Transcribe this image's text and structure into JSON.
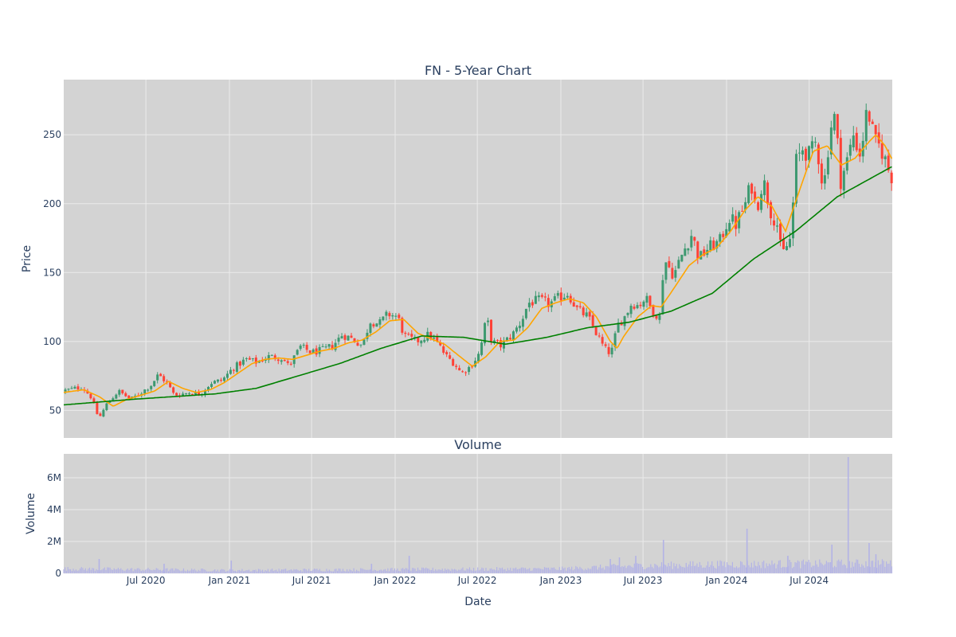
{
  "colors": {
    "plot_bg": "#d3d3d3",
    "grid": "#ebebeb",
    "increasing": "#3d9970",
    "decreasing": "#ff4136",
    "ma_short": "#ffa500",
    "ma_long": "#008000",
    "volume": "#b3b3e6",
    "text": "#2a3f5f"
  },
  "chart_data": [
    {
      "type": "candlestick",
      "title": "FN - 5-Year Chart",
      "xlabel": "",
      "ylabel": "Price",
      "xlim": [
        "2020-01-02",
        "2024-12-31"
      ],
      "ylim": [
        30,
        290
      ],
      "y_ticks": [
        50,
        100,
        150,
        200,
        250
      ],
      "grid": true,
      "price_path": [
        [
          "2020-01-02",
          64
        ],
        [
          "2020-02-15",
          67
        ],
        [
          "2020-03-05",
          60
        ],
        [
          "2020-03-23",
          44
        ],
        [
          "2020-04-10",
          55
        ],
        [
          "2020-05-05",
          64
        ],
        [
          "2020-06-01",
          58
        ],
        [
          "2020-06-20",
          62
        ],
        [
          "2020-07-15",
          68
        ],
        [
          "2020-08-01",
          76
        ],
        [
          "2020-08-20",
          70
        ],
        [
          "2020-09-05",
          61
        ],
        [
          "2020-10-10",
          63
        ],
        [
          "2020-11-01",
          62
        ],
        [
          "2020-11-25",
          70
        ],
        [
          "2020-12-20",
          72
        ],
        [
          "2021-01-10",
          80
        ],
        [
          "2021-02-10",
          87
        ],
        [
          "2021-03-05",
          85
        ],
        [
          "2021-04-01",
          89
        ],
        [
          "2021-05-01",
          88
        ],
        [
          "2021-05-15",
          82
        ],
        [
          "2021-06-10",
          96
        ],
        [
          "2021-07-05",
          92
        ],
        [
          "2021-08-01",
          94
        ],
        [
          "2021-08-20",
          97
        ],
        [
          "2021-09-10",
          105
        ],
        [
          "2021-10-01",
          102
        ],
        [
          "2021-10-25",
          97
        ],
        [
          "2021-11-10",
          115
        ],
        [
          "2021-12-01",
          113
        ],
        [
          "2021-12-20",
          120
        ],
        [
          "2022-01-10",
          118
        ],
        [
          "2022-01-25",
          104
        ],
        [
          "2022-02-20",
          100
        ],
        [
          "2022-03-20",
          105
        ],
        [
          "2022-04-10",
          98
        ],
        [
          "2022-04-25",
          90
        ],
        [
          "2022-05-15",
          84
        ],
        [
          "2022-05-30",
          77
        ],
        [
          "2022-06-20",
          82
        ],
        [
          "2022-07-10",
          92
        ],
        [
          "2022-07-25",
          118
        ],
        [
          "2022-08-05",
          100
        ],
        [
          "2022-08-25",
          97
        ],
        [
          "2022-09-20",
          105
        ],
        [
          "2022-10-10",
          115
        ],
        [
          "2022-10-25",
          128
        ],
        [
          "2022-11-20",
          130
        ],
        [
          "2022-12-10",
          127
        ],
        [
          "2023-01-01",
          132
        ],
        [
          "2023-01-20",
          135
        ],
        [
          "2023-02-10",
          123
        ],
        [
          "2023-03-05",
          118
        ],
        [
          "2023-03-25",
          105
        ],
        [
          "2023-04-10",
          95
        ],
        [
          "2023-04-25",
          91
        ],
        [
          "2023-05-10",
          112
        ],
        [
          "2023-05-25",
          118
        ],
        [
          "2023-06-10",
          128
        ],
        [
          "2023-06-25",
          126
        ],
        [
          "2023-07-10",
          132
        ],
        [
          "2023-07-25",
          122
        ],
        [
          "2023-08-10",
          118
        ],
        [
          "2023-08-20",
          160
        ],
        [
          "2023-09-10",
          148
        ],
        [
          "2023-10-01",
          165
        ],
        [
          "2023-10-20",
          178
        ],
        [
          "2023-11-05",
          160
        ],
        [
          "2023-11-25",
          168
        ],
        [
          "2023-12-20",
          172
        ],
        [
          "2024-01-10",
          190
        ],
        [
          "2024-01-25",
          185
        ],
        [
          "2024-02-15",
          200
        ],
        [
          "2024-02-28",
          215
        ],
        [
          "2024-03-10",
          195
        ],
        [
          "2024-03-25",
          218
        ],
        [
          "2024-04-10",
          195
        ],
        [
          "2024-04-25",
          185
        ],
        [
          "2024-05-05",
          162
        ],
        [
          "2024-05-25",
          175
        ],
        [
          "2024-06-05",
          230
        ],
        [
          "2024-06-20",
          240
        ],
        [
          "2024-07-05",
          235
        ],
        [
          "2024-07-20",
          245
        ],
        [
          "2024-08-05",
          210
        ],
        [
          "2024-08-20",
          255
        ],
        [
          "2024-09-01",
          265
        ],
        [
          "2024-09-10",
          215
        ],
        [
          "2024-09-25",
          230
        ],
        [
          "2024-10-10",
          250
        ],
        [
          "2024-10-25",
          235
        ],
        [
          "2024-11-10",
          270
        ],
        [
          "2024-11-25",
          245
        ],
        [
          "2024-12-10",
          240
        ],
        [
          "2024-12-31",
          220
        ]
      ],
      "ma_short_path": [
        [
          "2020-01-02",
          63
        ],
        [
          "2020-02-15",
          65
        ],
        [
          "2020-03-20",
          60
        ],
        [
          "2020-04-20",
          53
        ],
        [
          "2020-05-20",
          58
        ],
        [
          "2020-06-20",
          61
        ],
        [
          "2020-07-20",
          64
        ],
        [
          "2020-08-20",
          71
        ],
        [
          "2020-09-20",
          66
        ],
        [
          "2020-10-20",
          63
        ],
        [
          "2020-11-20",
          65
        ],
        [
          "2020-12-20",
          70
        ],
        [
          "2021-01-20",
          77
        ],
        [
          "2021-02-20",
          84
        ],
        [
          "2021-03-20",
          87
        ],
        [
          "2021-04-20",
          88
        ],
        [
          "2021-05-20",
          87
        ],
        [
          "2021-06-20",
          90
        ],
        [
          "2021-07-20",
          93
        ],
        [
          "2021-08-20",
          95
        ],
        [
          "2021-09-20",
          99
        ],
        [
          "2021-10-20",
          101
        ],
        [
          "2021-11-20",
          107
        ],
        [
          "2021-12-20",
          115
        ],
        [
          "2022-01-20",
          116
        ],
        [
          "2022-02-20",
          106
        ],
        [
          "2022-03-20",
          102
        ],
        [
          "2022-04-20",
          98
        ],
        [
          "2022-05-20",
          90
        ],
        [
          "2022-06-20",
          82
        ],
        [
          "2022-07-20",
          89
        ],
        [
          "2022-08-20",
          100
        ],
        [
          "2022-09-20",
          101
        ],
        [
          "2022-10-20",
          110
        ],
        [
          "2022-11-20",
          124
        ],
        [
          "2022-12-20",
          128
        ],
        [
          "2023-01-20",
          131
        ],
        [
          "2023-02-20",
          128
        ],
        [
          "2023-03-20",
          118
        ],
        [
          "2023-04-20",
          100
        ],
        [
          "2023-05-05",
          95
        ],
        [
          "2023-05-20",
          104
        ],
        [
          "2023-06-20",
          118
        ],
        [
          "2023-07-20",
          126
        ],
        [
          "2023-08-10",
          125
        ],
        [
          "2023-09-10",
          140
        ],
        [
          "2023-10-10",
          155
        ],
        [
          "2023-11-10",
          163
        ],
        [
          "2023-12-10",
          168
        ],
        [
          "2024-01-10",
          180
        ],
        [
          "2024-02-10",
          195
        ],
        [
          "2024-03-10",
          205
        ],
        [
          "2024-04-10",
          198
        ],
        [
          "2024-05-10",
          180
        ],
        [
          "2024-06-10",
          210
        ],
        [
          "2024-07-10",
          238
        ],
        [
          "2024-08-10",
          242
        ],
        [
          "2024-09-10",
          228
        ],
        [
          "2024-10-10",
          233
        ],
        [
          "2024-11-10",
          245
        ],
        [
          "2024-11-25",
          250
        ],
        [
          "2024-12-15",
          242
        ],
        [
          "2024-12-31",
          232
        ]
      ],
      "ma_long_path": [
        [
          "2020-01-02",
          54
        ],
        [
          "2020-06-01",
          58
        ],
        [
          "2020-12-01",
          62
        ],
        [
          "2021-03-01",
          66
        ],
        [
          "2021-06-01",
          75
        ],
        [
          "2021-09-01",
          84
        ],
        [
          "2021-12-01",
          95
        ],
        [
          "2022-03-01",
          104
        ],
        [
          "2022-06-01",
          103
        ],
        [
          "2022-09-01",
          98
        ],
        [
          "2022-12-01",
          103
        ],
        [
          "2023-03-01",
          110
        ],
        [
          "2023-06-01",
          114
        ],
        [
          "2023-09-01",
          122
        ],
        [
          "2023-12-01",
          135
        ],
        [
          "2024-03-01",
          160
        ],
        [
          "2024-06-01",
          180
        ],
        [
          "2024-09-01",
          205
        ],
        [
          "2024-12-31",
          227
        ]
      ]
    },
    {
      "type": "bar",
      "title": "Volume",
      "xlabel": "Date",
      "ylabel": "Volume",
      "xlim": [
        "2020-01-02",
        "2024-12-31"
      ],
      "ylim": [
        0,
        7500000
      ],
      "y_ticks": [
        0,
        2000000,
        4000000,
        6000000
      ],
      "y_tick_labels": [
        "0",
        "2M",
        "4M",
        "6M"
      ],
      "x_ticks": [
        "2020-07-01",
        "2021-01-01",
        "2021-07-01",
        "2022-01-01",
        "2022-07-01",
        "2023-01-01",
        "2023-07-01",
        "2024-01-01",
        "2024-07-01"
      ],
      "x_tick_labels": [
        "Jul 2020",
        "Jan 2021",
        "Jul 2021",
        "Jan 2022",
        "Jul 2022",
        "Jan 2023",
        "Jul 2023",
        "Jan 2024",
        "Jul 2024"
      ],
      "grid": true,
      "baseline_volume": [
        [
          "2020-01-02",
          300000
        ],
        [
          "2021-01-01",
          200000
        ],
        [
          "2022-01-01",
          250000
        ],
        [
          "2023-01-01",
          300000
        ],
        [
          "2023-07-01",
          500000
        ],
        [
          "2024-01-01",
          600000
        ],
        [
          "2024-12-31",
          650000
        ]
      ],
      "volume_spikes": [
        [
          "2020-03-20",
          900000
        ],
        [
          "2020-08-10",
          600000
        ],
        [
          "2021-01-05",
          800000
        ],
        [
          "2021-11-10",
          600000
        ],
        [
          "2022-02-01",
          1100000
        ],
        [
          "2023-04-20",
          900000
        ],
        [
          "2023-05-10",
          1000000
        ],
        [
          "2023-06-15",
          1100000
        ],
        [
          "2023-08-15",
          2100000
        ],
        [
          "2024-02-15",
          2800000
        ],
        [
          "2024-05-15",
          1100000
        ],
        [
          "2024-08-20",
          1800000
        ],
        [
          "2024-09-25",
          7300000
        ],
        [
          "2024-11-10",
          1900000
        ],
        [
          "2024-11-25",
          1200000
        ]
      ]
    }
  ]
}
